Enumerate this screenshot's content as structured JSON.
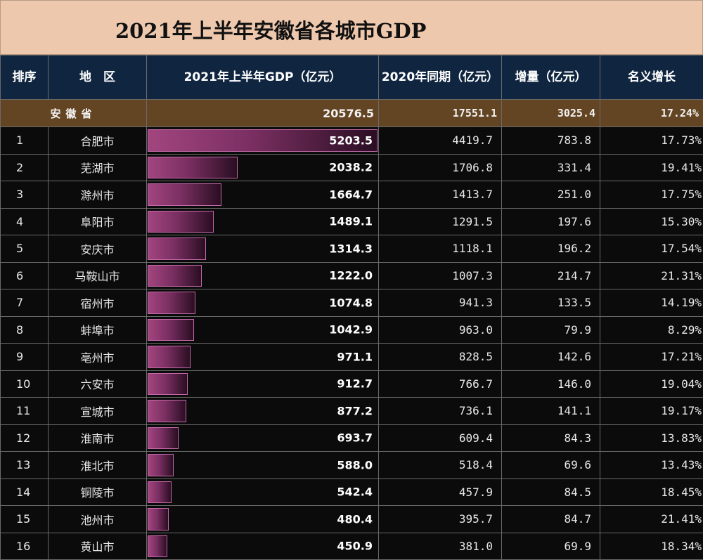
{
  "title": "2021年上半年安徽省各城市GDP",
  "headers": [
    "排序",
    "地　区",
    "2021年上半年GDP（亿元）",
    "2020年同期（亿元）",
    "增量（亿元）",
    "名义增长"
  ],
  "summary": {
    "name": "安徽省",
    "gdp": "20576.5",
    "prev": "17551.1",
    "increase": "3025.4",
    "growth": "17.24%"
  },
  "rows": [
    {
      "rank": "1",
      "city": "合肥市",
      "gdp": "5203.5",
      "prev": "4419.7",
      "increase": "783.8",
      "growth": "17.73%"
    },
    {
      "rank": "2",
      "city": "芜湖市",
      "gdp": "2038.2",
      "prev": "1706.8",
      "increase": "331.4",
      "growth": "19.41%"
    },
    {
      "rank": "3",
      "city": "滁州市",
      "gdp": "1664.7",
      "prev": "1413.7",
      "increase": "251.0",
      "growth": "17.75%"
    },
    {
      "rank": "4",
      "city": "阜阳市",
      "gdp": "1489.1",
      "prev": "1291.5",
      "increase": "197.6",
      "growth": "15.30%"
    },
    {
      "rank": "5",
      "city": "安庆市",
      "gdp": "1314.3",
      "prev": "1118.1",
      "increase": "196.2",
      "growth": "17.54%"
    },
    {
      "rank": "6",
      "city": "马鞍山市",
      "gdp": "1222.0",
      "prev": "1007.3",
      "increase": "214.7",
      "growth": "21.31%"
    },
    {
      "rank": "7",
      "city": "宿州市",
      "gdp": "1074.8",
      "prev": "941.3",
      "increase": "133.5",
      "growth": "14.19%"
    },
    {
      "rank": "8",
      "city": "蚌埠市",
      "gdp": "1042.9",
      "prev": "963.0",
      "increase": "79.9",
      "growth": "8.29%"
    },
    {
      "rank": "9",
      "city": "亳州市",
      "gdp": "971.1",
      "prev": "828.5",
      "increase": "142.6",
      "growth": "17.21%"
    },
    {
      "rank": "10",
      "city": "六安市",
      "gdp": "912.7",
      "prev": "766.7",
      "increase": "146.0",
      "growth": "19.04%"
    },
    {
      "rank": "11",
      "city": "宣城市",
      "gdp": "877.2",
      "prev": "736.1",
      "increase": "141.1",
      "growth": "19.17%"
    },
    {
      "rank": "12",
      "city": "淮南市",
      "gdp": "693.7",
      "prev": "609.4",
      "increase": "84.3",
      "growth": "13.83%"
    },
    {
      "rank": "13",
      "city": "淮北市",
      "gdp": "588.0",
      "prev": "518.4",
      "increase": "69.6",
      "growth": "13.43%"
    },
    {
      "rank": "14",
      "city": "铜陵市",
      "gdp": "542.4",
      "prev": "457.9",
      "increase": "84.5",
      "growth": "18.45%"
    },
    {
      "rank": "15",
      "city": "池州市",
      "gdp": "480.4",
      "prev": "395.7",
      "increase": "84.7",
      "growth": "21.41%"
    },
    {
      "rank": "16",
      "city": "黄山市",
      "gdp": "450.9",
      "prev": "381.0",
      "increase": "69.9",
      "growth": "18.34%"
    }
  ],
  "chart_data": {
    "type": "bar",
    "categories": [
      "合肥市",
      "芜湖市",
      "滁州市",
      "阜阳市",
      "安庆市",
      "马鞍山市",
      "宿州市",
      "蚌埠市",
      "亳州市",
      "六安市",
      "宣城市",
      "淮南市",
      "淮北市",
      "铜陵市",
      "池州市",
      "黄山市"
    ],
    "values": [
      5203.5,
      2038.2,
      1664.7,
      1489.1,
      1314.3,
      1222.0,
      1074.8,
      1042.9,
      971.1,
      912.7,
      877.2,
      693.7,
      588.0,
      542.4,
      480.4,
      450.9
    ],
    "xlim": [
      0,
      5203.5
    ],
    "colors": {
      "bar": "#8e3a72",
      "bar_border": "#c46aa8"
    }
  }
}
